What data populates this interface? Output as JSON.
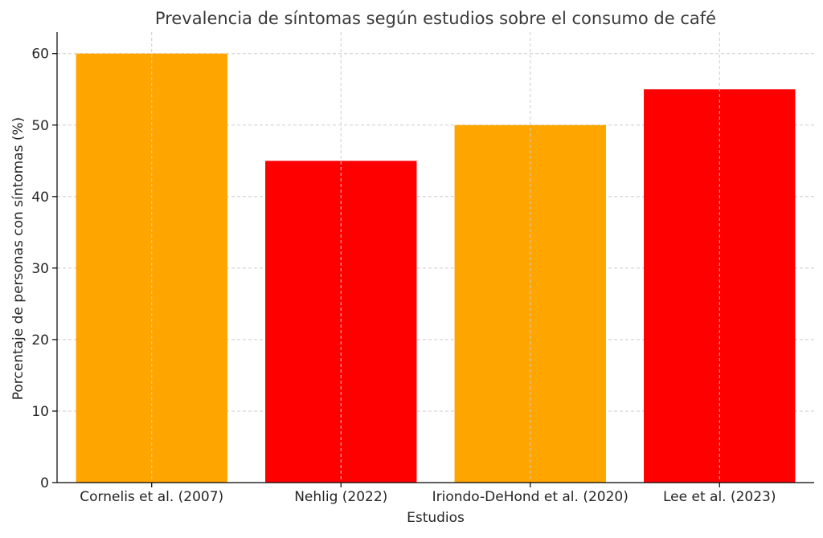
{
  "chart_data": {
    "type": "bar",
    "title": "Prevalencia de síntomas según estudios sobre el consumo de café",
    "xlabel": "Estudios",
    "ylabel": "Porcentaje de personas con síntomas (%)",
    "categories": [
      "Cornelis et al. (2007)",
      "Nehlig (2022)",
      "Iriondo-DeHond et al. (2020)",
      "Lee et al. (2023)"
    ],
    "values": [
      60,
      45,
      50,
      55
    ],
    "bar_colors": [
      "#FFA500",
      "#FF0000",
      "#FFA500",
      "#FF0000"
    ],
    "ylim": [
      0,
      63
    ],
    "yticks": [
      0,
      10,
      20,
      30,
      40,
      50,
      60
    ],
    "grid": true,
    "legend": "none"
  }
}
